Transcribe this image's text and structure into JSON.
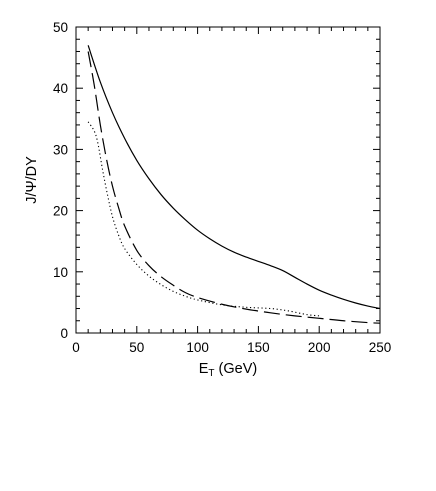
{
  "chart_data": {
    "type": "line",
    "title": "",
    "xlabel_main": "E",
    "xlabel_sub": "T",
    "xlabel_unit": " (GeV)",
    "ylabel": "J/Ψ/DY",
    "xlim": [
      0,
      250
    ],
    "ylim": [
      0,
      50
    ],
    "xticks": [
      0,
      50,
      100,
      150,
      200,
      250
    ],
    "yticks": [
      0,
      10,
      20,
      30,
      40,
      50
    ],
    "grid": false,
    "legend": "none",
    "series": [
      {
        "style": "solid",
        "color": "#000000",
        "x": [
          10,
          20,
          30,
          40,
          50,
          60,
          70,
          80,
          90,
          100,
          110,
          120,
          130,
          140,
          150,
          160,
          170,
          180,
          190,
          200,
          210,
          220,
          230,
          240,
          250
        ],
        "y": [
          47.0,
          41.0,
          36.0,
          31.8,
          28.2,
          25.2,
          22.6,
          20.4,
          18.5,
          16.8,
          15.4,
          14.2,
          13.2,
          12.4,
          11.7,
          11.0,
          10.2,
          9.1,
          8.0,
          7.0,
          6.2,
          5.5,
          4.9,
          4.4,
          4.0
        ]
      },
      {
        "style": "dashed",
        "color": "#000000",
        "x": [
          10,
          15,
          20,
          25,
          30,
          35,
          40,
          50,
          60,
          70,
          80,
          90,
          100,
          120,
          140,
          160,
          180,
          200,
          220,
          240,
          250
        ],
        "y": [
          46.0,
          40.5,
          34.0,
          28.5,
          24.0,
          20.5,
          17.5,
          13.5,
          11.0,
          9.2,
          7.8,
          6.6,
          5.8,
          4.7,
          3.9,
          3.3,
          2.8,
          2.4,
          2.0,
          1.7,
          1.6
        ]
      },
      {
        "style": "dotted",
        "color": "#000000",
        "x": [
          10,
          15,
          18,
          22,
          26,
          30,
          35,
          40,
          50,
          60,
          70,
          80,
          90,
          100,
          120,
          140,
          160,
          175,
          190,
          200
        ],
        "y": [
          34.5,
          33.0,
          31.0,
          26.5,
          22.5,
          19.0,
          16.0,
          13.8,
          11.2,
          9.3,
          7.9,
          6.8,
          6.0,
          5.4,
          4.6,
          4.2,
          4.0,
          3.6,
          3.0,
          2.8
        ]
      }
    ]
  }
}
